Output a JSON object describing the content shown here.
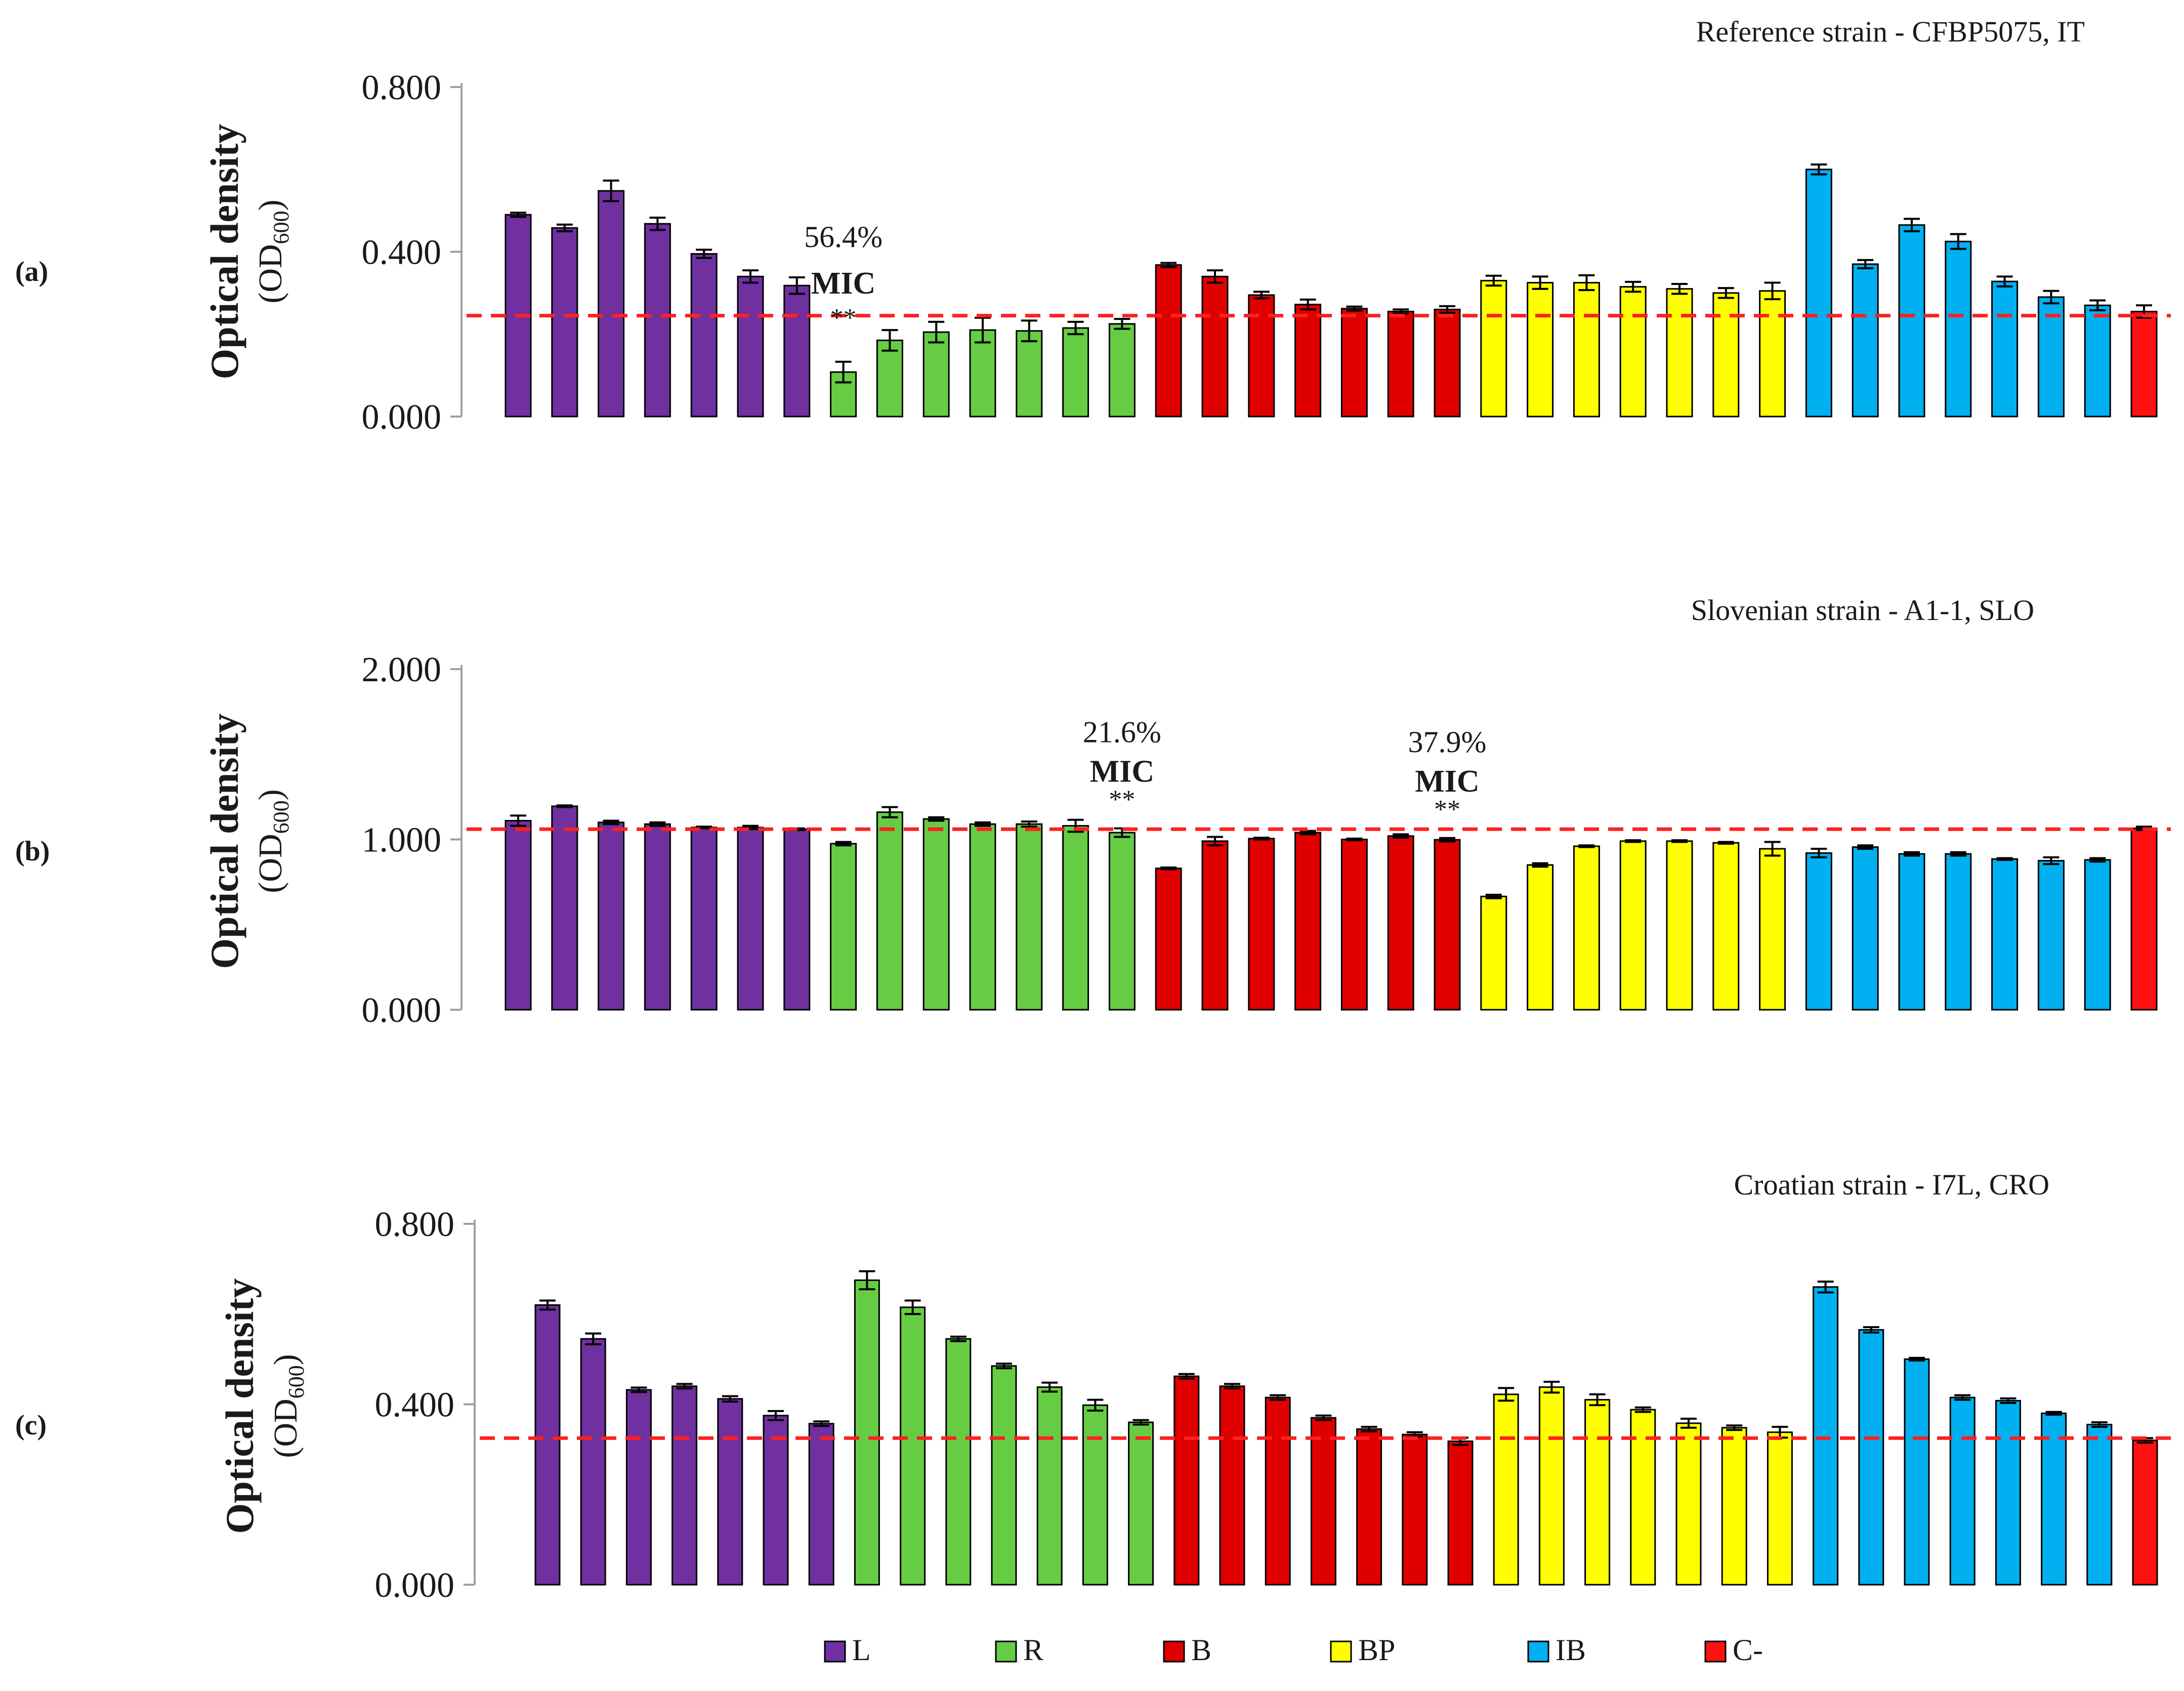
{
  "figure": {
    "legend": [
      {
        "name": "L",
        "color": "#7030A0"
      },
      {
        "name": "R",
        "color": "#66CC44"
      },
      {
        "name": "B",
        "color": "#E00000"
      },
      {
        "name": "BP",
        "color": "#FFFF00"
      },
      {
        "name": "IB",
        "color": "#00B0F0"
      },
      {
        "name": "C-",
        "color": "#FF1111"
      }
    ],
    "threshold_line_color": "#FF2020"
  },
  "chart_data": [
    {
      "type": "bar",
      "panel_label": "(a)",
      "title": "Reference strain - CFBP5075, IT",
      "ylabel": "Optical density",
      "ylabel_sub": "(OD600)",
      "ylabel_sub_base": "(OD",
      "ylabel_sub_index": "600",
      "ylabel_sub_close": ")",
      "ylim": [
        0,
        0.8
      ],
      "yticks": [
        "0.000",
        "0.400",
        "0.800"
      ],
      "ytick_values": [
        0,
        0.4,
        0.8
      ],
      "threshold": 0.245,
      "groups": [
        "L",
        "L",
        "L",
        "L",
        "L",
        "L",
        "L",
        "R",
        "R",
        "R",
        "R",
        "R",
        "R",
        "R",
        "B",
        "B",
        "B",
        "B",
        "B",
        "B",
        "B",
        "BP",
        "BP",
        "BP",
        "BP",
        "BP",
        "BP",
        "BP",
        "IB",
        "IB",
        "IB",
        "IB",
        "IB",
        "IB",
        "IB",
        "C-"
      ],
      "values": [
        0.49,
        0.458,
        0.548,
        0.468,
        0.395,
        0.34,
        0.318,
        0.108,
        0.185,
        0.205,
        0.21,
        0.208,
        0.215,
        0.225,
        0.368,
        0.34,
        0.295,
        0.272,
        0.262,
        0.255,
        0.26,
        0.33,
        0.325,
        0.325,
        0.315,
        0.31,
        0.3,
        0.305,
        0.6,
        0.37,
        0.465,
        0.425,
        0.328,
        0.29,
        0.27,
        0.255
      ],
      "errors": [
        0.005,
        0.008,
        0.025,
        0.015,
        0.01,
        0.015,
        0.02,
        0.025,
        0.025,
        0.025,
        0.03,
        0.025,
        0.015,
        0.012,
        0.005,
        0.015,
        0.008,
        0.012,
        0.005,
        0.005,
        0.008,
        0.012,
        0.015,
        0.018,
        0.012,
        0.012,
        0.012,
        0.02,
        0.012,
        0.01,
        0.015,
        0.018,
        0.012,
        0.015,
        0.012,
        0.015
      ],
      "annotations": [
        {
          "bar_index": 7,
          "percent": "56.4%",
          "label": "MIC",
          "stars": "**"
        }
      ]
    },
    {
      "type": "bar",
      "panel_label": "(b)",
      "title": "Slovenian strain - A1-1, SLO",
      "ylabel": "Optical density",
      "ylabel_sub": "(OD600)",
      "ylabel_sub_base": "(OD",
      "ylabel_sub_index": "600",
      "ylabel_sub_close": ")",
      "ylim": [
        0,
        2.0
      ],
      "yticks": [
        "0.000",
        "1.000",
        "2.000"
      ],
      "ytick_values": [
        0,
        1.0,
        2.0
      ],
      "threshold": 1.06,
      "groups": [
        "L",
        "L",
        "L",
        "L",
        "L",
        "L",
        "L",
        "R",
        "R",
        "R",
        "R",
        "R",
        "R",
        "R",
        "B",
        "B",
        "B",
        "B",
        "B",
        "B",
        "B",
        "BP",
        "BP",
        "BP",
        "BP",
        "BP",
        "BP",
        "BP",
        "IB",
        "IB",
        "IB",
        "IB",
        "IB",
        "IB",
        "IB",
        "C-"
      ],
      "values": [
        1.11,
        1.195,
        1.1,
        1.09,
        1.07,
        1.07,
        1.06,
        0.975,
        1.16,
        1.12,
        1.09,
        1.09,
        1.08,
        1.04,
        0.83,
        0.99,
        1.005,
        1.04,
        1.0,
        1.02,
        0.998,
        0.665,
        0.85,
        0.96,
        0.99,
        0.99,
        0.98,
        0.945,
        0.92,
        0.955,
        0.915,
        0.915,
        0.885,
        0.875,
        0.88,
        1.065
      ],
      "errors": [
        0.03,
        0.005,
        0.01,
        0.01,
        0.005,
        0.01,
        0.005,
        0.01,
        0.03,
        0.01,
        0.01,
        0.015,
        0.035,
        0.025,
        0.005,
        0.025,
        0.005,
        0.01,
        0.005,
        0.01,
        0.01,
        0.01,
        0.01,
        0.005,
        0.005,
        0.005,
        0.005,
        0.04,
        0.025,
        0.01,
        0.01,
        0.01,
        0.005,
        0.02,
        0.01,
        0.01
      ],
      "annotations": [
        {
          "bar_index": 13,
          "percent": "21.6%",
          "label": "MIC",
          "stars": "**"
        },
        {
          "bar_index": 20,
          "percent": "37.9%",
          "label": "MIC",
          "stars": "**"
        }
      ]
    },
    {
      "type": "bar",
      "panel_label": "(c)",
      "title": "Croatian strain - I7L, CRO",
      "ylabel": "Optical density",
      "ylabel_sub": "(OD600)",
      "ylabel_sub_base": "(OD",
      "ylabel_sub_index": "600",
      "ylabel_sub_close": ")",
      "ylim": [
        0,
        0.8
      ],
      "yticks": [
        "0.000",
        "0.400",
        "0.800"
      ],
      "ytick_values": [
        0,
        0.4,
        0.8
      ],
      "threshold": 0.325,
      "groups": [
        "L",
        "L",
        "L",
        "L",
        "L",
        "L",
        "L",
        "R",
        "R",
        "R",
        "R",
        "R",
        "R",
        "R",
        "B",
        "B",
        "B",
        "B",
        "B",
        "B",
        "B",
        "BP",
        "BP",
        "BP",
        "BP",
        "BP",
        "BP",
        "BP",
        "IB",
        "IB",
        "IB",
        "IB",
        "IB",
        "IB",
        "IB",
        "C-"
      ],
      "values": [
        0.62,
        0.545,
        0.432,
        0.44,
        0.412,
        0.375,
        0.357,
        0.675,
        0.615,
        0.545,
        0.485,
        0.438,
        0.398,
        0.36,
        0.462,
        0.44,
        0.415,
        0.37,
        0.345,
        0.333,
        0.318,
        0.422,
        0.438,
        0.41,
        0.388,
        0.358,
        0.348,
        0.338,
        0.66,
        0.565,
        0.5,
        0.415,
        0.408,
        0.38,
        0.355,
        0.32
      ],
      "errors": [
        0.01,
        0.012,
        0.005,
        0.005,
        0.006,
        0.01,
        0.005,
        0.02,
        0.015,
        0.005,
        0.005,
        0.01,
        0.012,
        0.005,
        0.005,
        0.005,
        0.005,
        0.005,
        0.005,
        0.005,
        0.008,
        0.014,
        0.012,
        0.012,
        0.005,
        0.01,
        0.005,
        0.012,
        0.012,
        0.006,
        0.003,
        0.005,
        0.005,
        0.003,
        0.005,
        0.005
      ],
      "annotations": []
    }
  ]
}
